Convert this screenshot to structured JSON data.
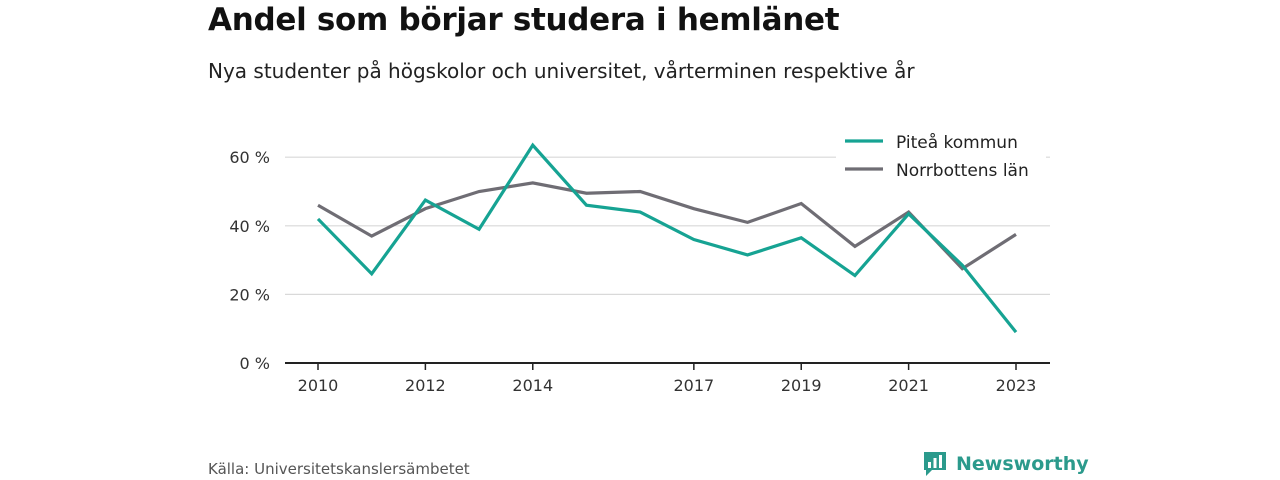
{
  "header": {
    "title": "Andel som börjar studera i hemlänet",
    "subtitle": "Nya studenter på högskolor och universitet, vårterminen respektive år"
  },
  "footer": {
    "source": "Källa: Universitetskanslersämbetet",
    "brand": "Newsworthy",
    "brand_icon": "bar-chart-speech-bubble-icon"
  },
  "colors": {
    "series_1": "#16a393",
    "series_2": "#6f6d74",
    "grid": "#d9d9d9",
    "axis": "#222222",
    "brand": "#2b9a8c"
  },
  "chart_data": {
    "type": "line",
    "x": [
      2010,
      2011,
      2012,
      2013,
      2014,
      2015,
      2016,
      2017,
      2018,
      2019,
      2020,
      2021,
      2022,
      2023
    ],
    "x_tick_labels": [
      "2010",
      "2012",
      "2014",
      "2017",
      "2019",
      "2021",
      "2023"
    ],
    "y_ticks": [
      0,
      20,
      40,
      60
    ],
    "y_tick_labels": [
      "0 %",
      "20 %",
      "40 %",
      "60 %"
    ],
    "ylim": [
      0,
      70
    ],
    "grid": true,
    "legend_position": "top-right",
    "series": [
      {
        "name": "Piteå kommun",
        "values": [
          42,
          26,
          47.5,
          39,
          63.5,
          46,
          44,
          36,
          31.5,
          36.5,
          25.5,
          43.5,
          28.5,
          9
        ]
      },
      {
        "name": "Norrbottens län",
        "values": [
          46,
          37,
          45,
          50,
          52.5,
          49.5,
          50,
          45,
          41,
          46.5,
          34,
          44,
          27.5,
          37.5
        ]
      }
    ]
  }
}
